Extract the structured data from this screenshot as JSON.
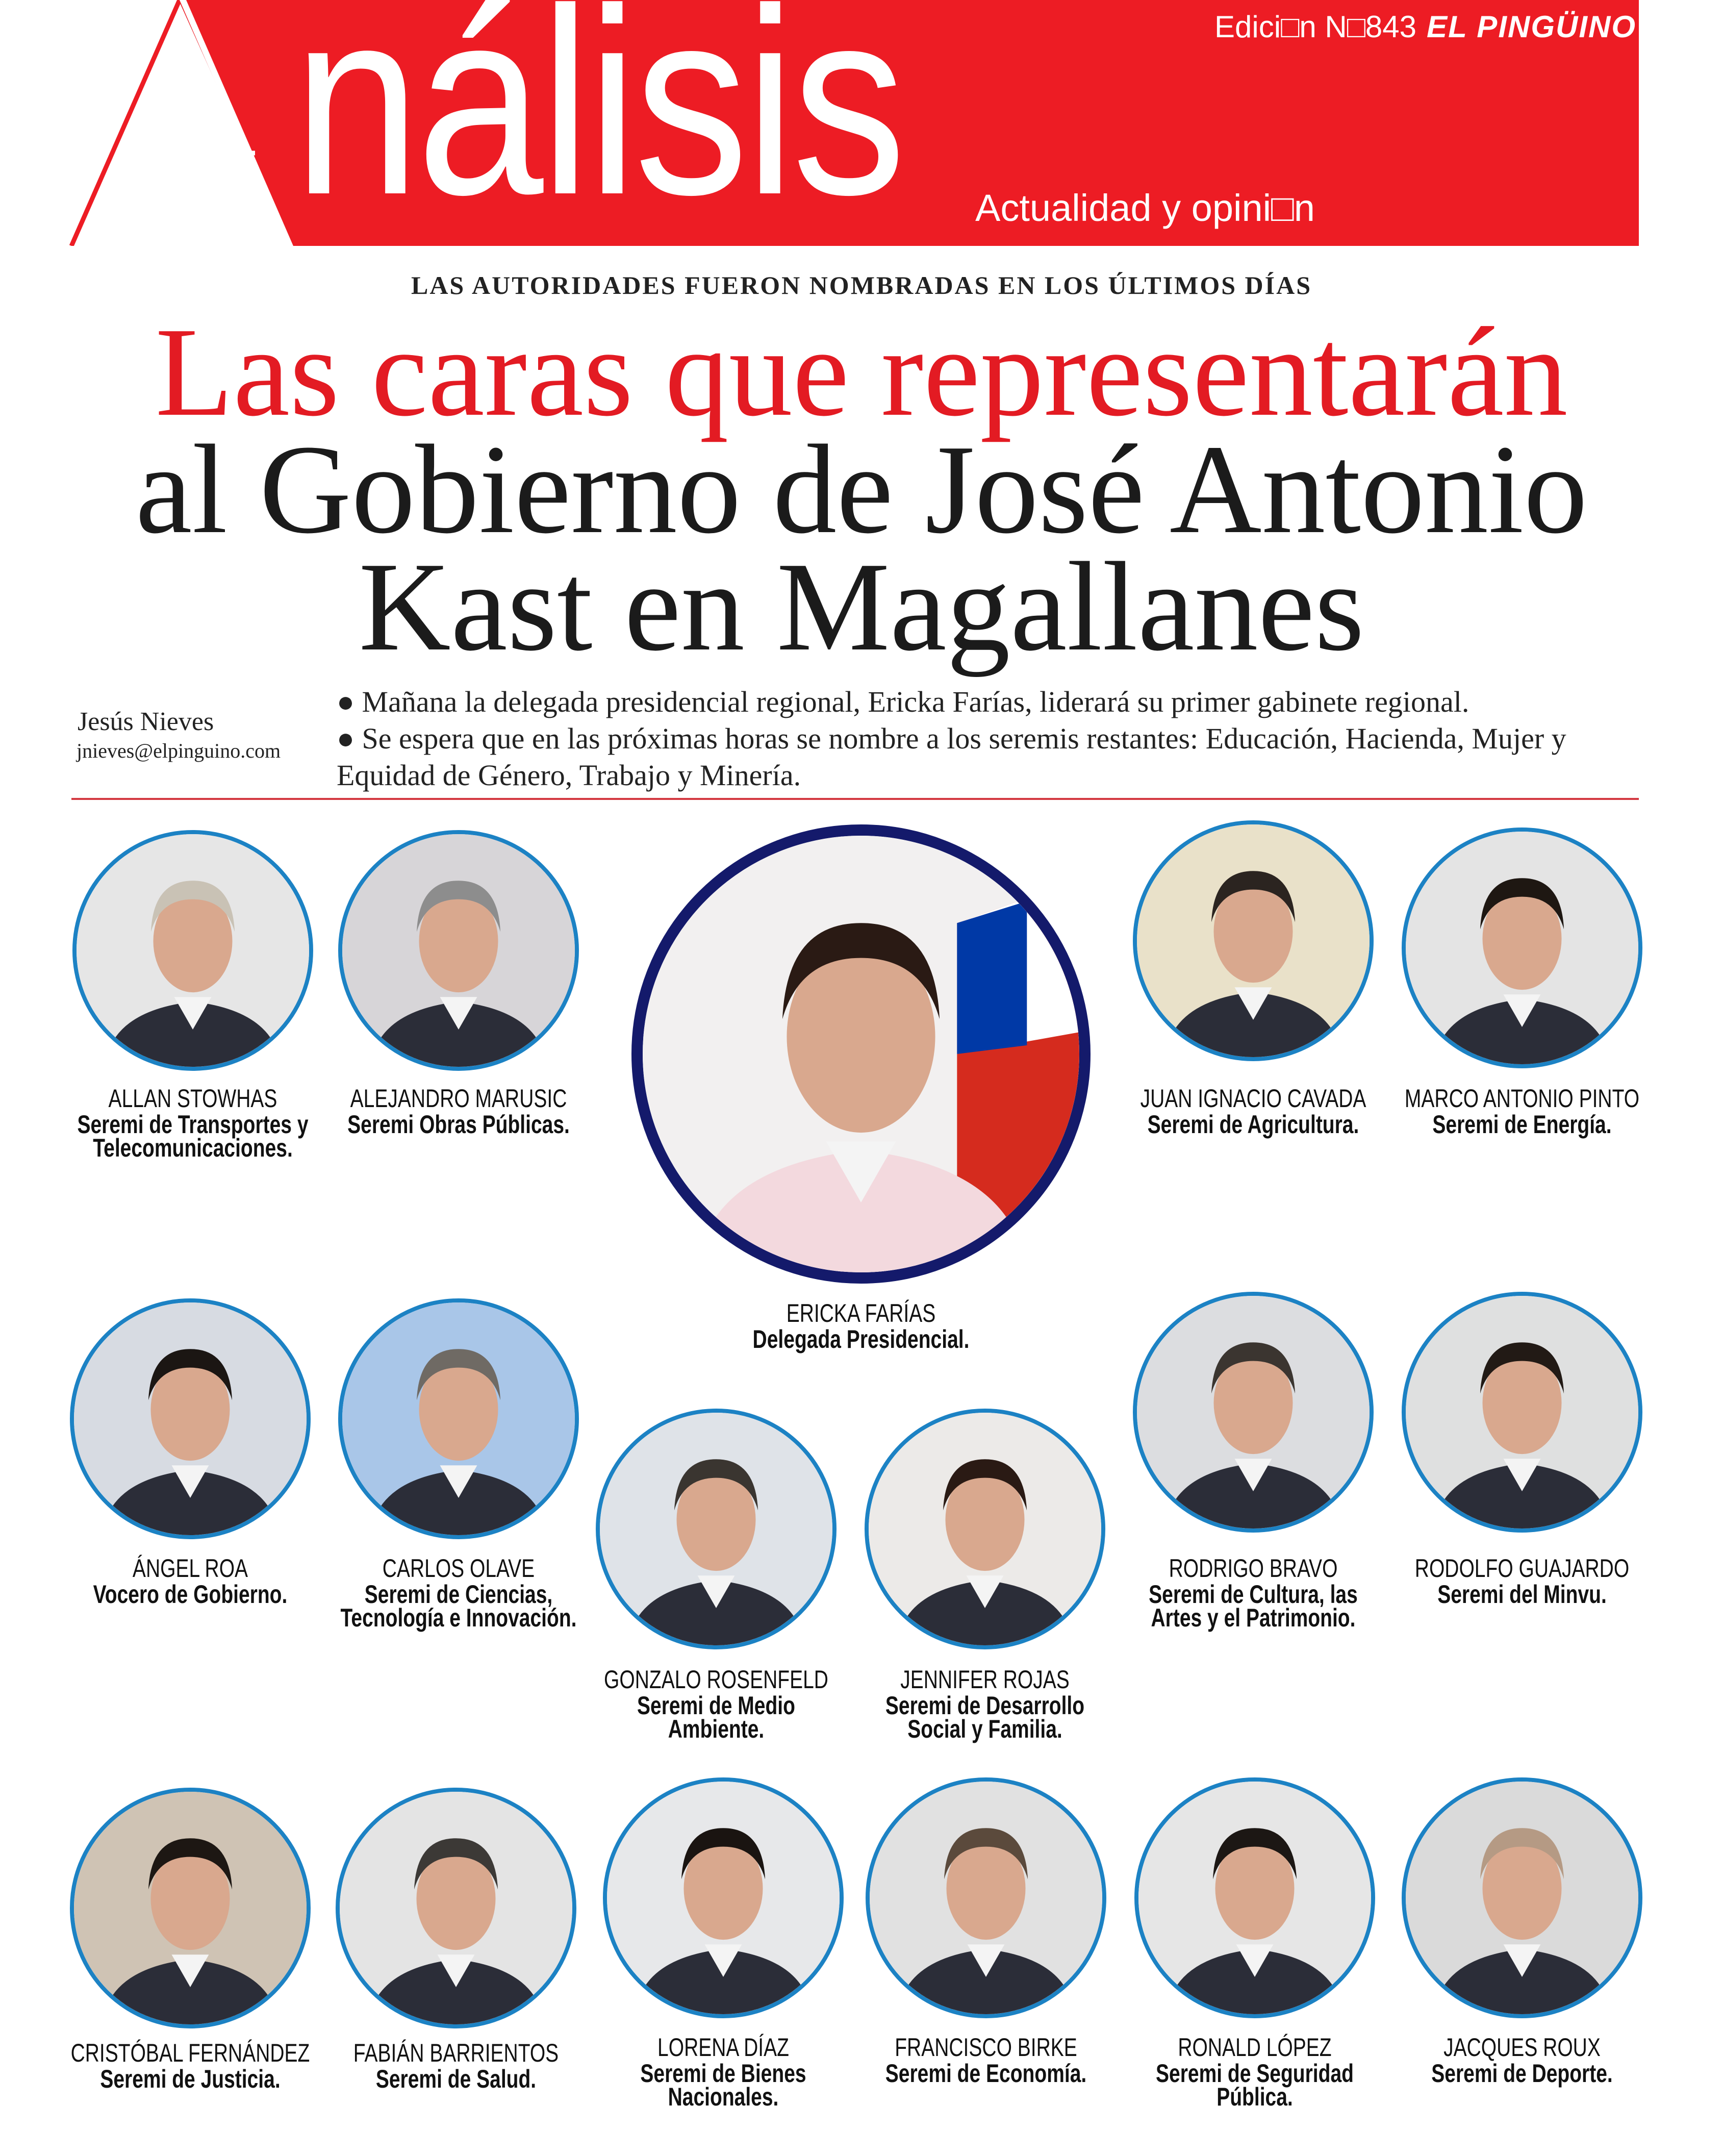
{
  "header": {
    "edition": "Edici□n N□843",
    "brand": "EL PINGÜINO",
    "masthead_initial": "A",
    "masthead_rest": "nálisis",
    "tagline": "Actualidad y opini□n",
    "banner_color": "#ed1c24"
  },
  "article": {
    "kicker": "LAS AUTORIDADES FUERON NOMBRADAS EN LOS ÚLTIMOS DÍAS",
    "headline_line1": "Las caras que representarán",
    "headline_line2": "al Gobierno de José Antonio",
    "headline_line3": "Kast en Magallanes",
    "author": "Jesús Nieves",
    "email": "jnieves@elpinguino.com",
    "bullets": [
      "● Mañana la delegada presidencial regional, Ericka Farías, liderará su primer gabinete regional.",
      "● Se espera que en las próximas horas se nombre a los seremis restantes: Educación, Hacienda, Mujer y Equidad de Género, Trabajo y Minería."
    ]
  },
  "people": [
    {
      "name": "ALLAN STOWHAS",
      "role": "Seremi de Transportes y\nTelecomunicaciones."
    },
    {
      "name": "ALEJANDRO MARUSIC",
      "role": "Seremi Obras Públicas."
    },
    {
      "name": "ERICKA FARÍAS",
      "role": "Delegada Presidencial."
    },
    {
      "name": "JUAN IGNACIO CAVADA",
      "role": "Seremi de Agricultura."
    },
    {
      "name": "MARCO ANTONIO PINTO",
      "role": "Seremi de Energía."
    },
    {
      "name": "ÁNGEL ROA",
      "role": "Vocero de Gobierno."
    },
    {
      "name": "CARLOS OLAVE",
      "role": "Seremi de Ciencias,\nTecnología e Innovación."
    },
    {
      "name": "GONZALO ROSENFELD",
      "role": "Seremi de Medio\nAmbiente."
    },
    {
      "name": "JENNIFER ROJAS",
      "role": "Seremi de Desarrollo\nSocial y Familia."
    },
    {
      "name": "RODRIGO BRAVO",
      "role": "Seremi de Cultura, las\nArtes y el Patrimonio."
    },
    {
      "name": "RODOLFO GUAJARDO",
      "role": "Seremi del Minvu."
    },
    {
      "name": "CRISTÓBAL FERNÁNDEZ",
      "role": "Seremi de Justicia."
    },
    {
      "name": "FABIÁN BARRIENTOS",
      "role": "Seremi de Salud."
    },
    {
      "name": "LORENA DÍAZ",
      "role": "Seremi de Bienes\nNacionales."
    },
    {
      "name": "FRANCISCO BIRKE",
      "role": "Seremi de Economía."
    },
    {
      "name": "RONALD LÓPEZ",
      "role": "Seremi de Seguridad\nPública."
    },
    {
      "name": "JACQUES ROUX",
      "role": "Seremi de Deporte."
    }
  ]
}
